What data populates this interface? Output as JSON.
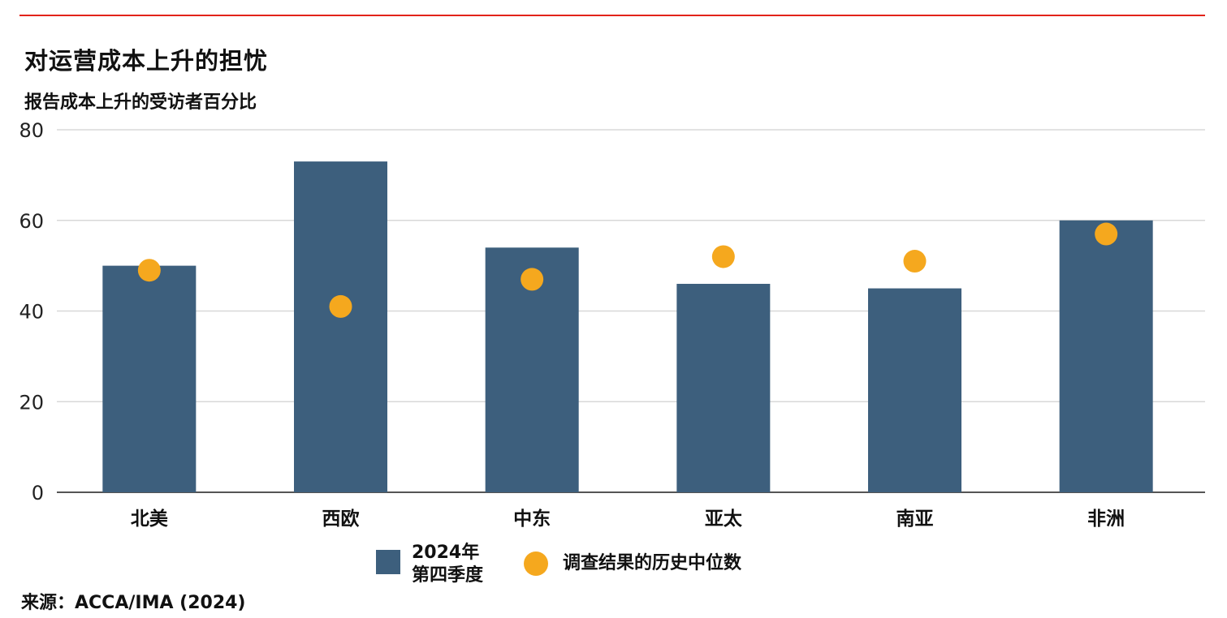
{
  "header": {
    "title": "对运营成本上升的担忧",
    "subtitle": "报告成本上升的受访者百分比"
  },
  "colors": {
    "bar": "#3d5f7d",
    "dot": "#f5a81e",
    "rule": "#e2231a",
    "grid": "#d8d8d8",
    "axis": "#555555"
  },
  "chart_data": {
    "type": "bar",
    "categories": [
      "北美",
      "西欧",
      "中东",
      "亚太",
      "南亚",
      "非洲"
    ],
    "series": [
      {
        "name": "2024年\n第四季度",
        "type": "bar",
        "values": [
          50,
          73,
          54,
          46,
          45,
          60
        ]
      },
      {
        "name": "调查结果的历史中位数",
        "type": "scatter",
        "values": [
          49,
          41,
          47,
          52,
          51,
          57
        ]
      }
    ],
    "yticks": [
      "0",
      "20",
      "40",
      "60",
      "80"
    ],
    "ylim": [
      0,
      80
    ],
    "grid": true,
    "legend_position": "bottom"
  },
  "legend": {
    "bar_label": "2024年\n第四季度",
    "dot_label": "调查结果的历史中位数"
  },
  "source": "来源：ACCA/IMA (2024)"
}
